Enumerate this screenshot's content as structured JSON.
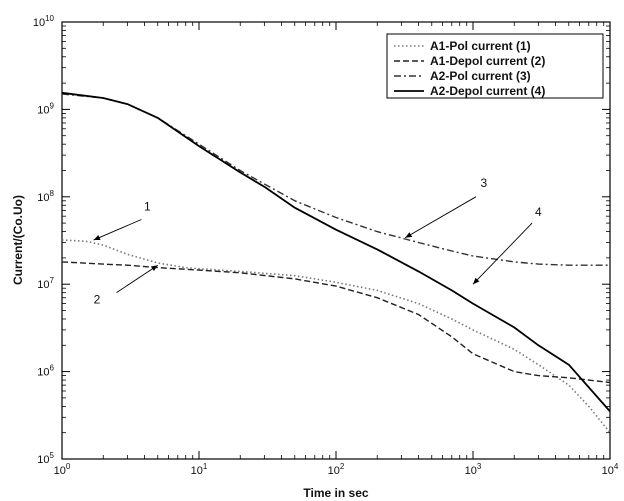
{
  "chart_data": {
    "type": "line",
    "title": "",
    "xlabel": "Time in sec",
    "ylabel": "Current/(Co.Uo)",
    "xscale": "log",
    "yscale": "log",
    "xlim": [
      1,
      10000
    ],
    "ylim": [
      100000,
      10000000000
    ],
    "x_ticks": [
      {
        "value": 1,
        "base": "10",
        "exp": "0"
      },
      {
        "value": 10,
        "base": "10",
        "exp": "1"
      },
      {
        "value": 100,
        "base": "10",
        "exp": "2"
      },
      {
        "value": 1000,
        "base": "10",
        "exp": "3"
      },
      {
        "value": 10000,
        "base": "10",
        "exp": "4"
      }
    ],
    "y_ticks": [
      {
        "value": 100000,
        "base": "10",
        "exp": "5"
      },
      {
        "value": 1000000,
        "base": "10",
        "exp": "6"
      },
      {
        "value": 10000000,
        "base": "10",
        "exp": "7"
      },
      {
        "value": 100000000,
        "base": "10",
        "exp": "8"
      },
      {
        "value": 1000000000,
        "base": "10",
        "exp": "9"
      },
      {
        "value": 10000000000,
        "base": "10",
        "exp": "10"
      }
    ],
    "grid": false,
    "legend_position": "top-right",
    "series": [
      {
        "name": "A1-Pol current (1)",
        "style": "dotted",
        "color": "#777777",
        "x": [
          1,
          1.5,
          2,
          3,
          5,
          8,
          10,
          20,
          50,
          100,
          200,
          400,
          700,
          1000,
          2000,
          3000,
          5000,
          7000,
          10000
        ],
        "y": [
          32000000,
          31000000,
          28000000,
          22000000,
          17500000,
          15500000,
          15000000,
          14000000,
          12500000,
          10500000,
          8500000,
          6000000,
          4000000,
          3000000,
          1800000,
          1200000,
          700000,
          400000,
          200000
        ]
      },
      {
        "name": "A1-Depol current (2)",
        "style": "dashed",
        "color": "#222222",
        "x": [
          1,
          2,
          3,
          5,
          10,
          20,
          50,
          100,
          200,
          400,
          700,
          1000,
          2000,
          3000,
          5000,
          10000
        ],
        "y": [
          18000000,
          17000000,
          16500000,
          15500000,
          14500000,
          13500000,
          11500000,
          9500000,
          7000000,
          4500000,
          2500000,
          1600000,
          1000000,
          900000,
          850000,
          750000
        ]
      },
      {
        "name": "A2-Pol current (3)",
        "style": "dashdot",
        "color": "#333333",
        "x": [
          1,
          2,
          3,
          5,
          10,
          20,
          30,
          50,
          100,
          200,
          400,
          700,
          1000,
          2000,
          3000,
          5000,
          10000
        ],
        "y": [
          1500000000,
          1350000000,
          1150000000,
          800000000,
          400000000,
          200000000,
          140000000,
          90000000,
          58000000,
          40000000,
          30000000,
          24000000,
          21000000,
          18000000,
          17000000,
          16500000,
          16500000
        ]
      },
      {
        "name": "A2-Depol current (4)",
        "style": "solid",
        "color": "#000000",
        "x": [
          1,
          2,
          3,
          5,
          10,
          20,
          30,
          50,
          100,
          200,
          400,
          700,
          1000,
          2000,
          3000,
          5000,
          10000
        ],
        "y": [
          1550000000,
          1350000000,
          1150000000,
          800000000,
          380000000,
          190000000,
          130000000,
          75000000,
          42000000,
          25000000,
          14000000,
          8500000,
          6000000,
          3200000,
          2000000,
          1200000,
          350000
        ]
      }
    ],
    "annotations": [
      {
        "label": "1",
        "text_at": [
          4.2,
          70000000
        ],
        "arrow_from": [
          3.8,
          55000000
        ],
        "arrow_to": [
          1.7,
          32000000
        ]
      },
      {
        "label": "2",
        "text_at": [
          1.8,
          6000000
        ],
        "arrow_from": [
          2.5,
          8000000
        ],
        "arrow_to": [
          5,
          16500000
        ]
      },
      {
        "label": "3",
        "text_at": [
          1200,
          130000000
        ],
        "arrow_from": [
          1050,
          100000000
        ],
        "arrow_to": [
          320,
          34000000
        ]
      },
      {
        "label": "4",
        "text_at": [
          3000,
          60000000
        ],
        "arrow_from": [
          2700,
          50000000
        ],
        "arrow_to": [
          1000,
          10000000
        ]
      }
    ]
  }
}
